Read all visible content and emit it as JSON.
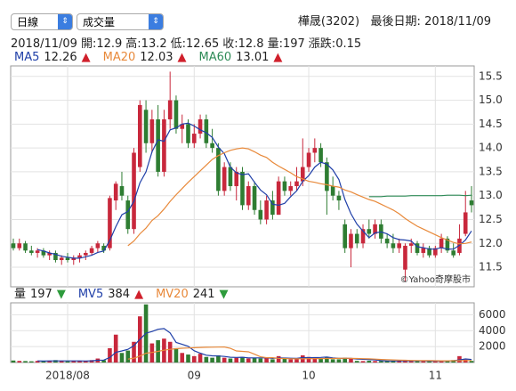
{
  "header": {
    "period_select": "日線",
    "indicator_select": "成交量",
    "stock": "樺晟(3202)",
    "last_date_label": "最後日期:",
    "last_date": "2018/11/09"
  },
  "quote": {
    "date": "2018/11/09",
    "items": [
      {
        "label": "開:",
        "value": 12.9
      },
      {
        "label": "高:",
        "value": 13.2
      },
      {
        "label": "低:",
        "value": 12.65
      },
      {
        "label": "收:",
        "value": 12.8
      },
      {
        "label": "量:",
        "value": 197
      },
      {
        "label": "漲跌:",
        "value": 0.15
      }
    ]
  },
  "chart_data": [
    {
      "type": "candlestick",
      "annotation": "©Yahoo奇摩股市",
      "up_color": "#c8283c",
      "down_color": "#2e7d32",
      "grid": true,
      "ylim": [
        11.09,
        15.72
      ],
      "yticks": [
        11.5,
        {
          "value": 12,
          "label": "12.0"
        },
        12.5,
        {
          "value": 13,
          "label": "13.0"
        },
        13.5,
        {
          "value": 14,
          "label": "14.0"
        },
        14.5,
        {
          "value": 15,
          "label": "15.0"
        },
        15.5
      ],
      "ohlc": [
        [
          12.0,
          12.1,
          11.85,
          11.9
        ],
        [
          11.9,
          12.1,
          11.85,
          12.0
        ],
        [
          12.0,
          12.05,
          11.8,
          11.85
        ],
        [
          11.85,
          11.95,
          11.75,
          11.8
        ],
        [
          11.8,
          11.9,
          11.7,
          11.85
        ],
        [
          11.85,
          11.9,
          11.7,
          11.75
        ],
        [
          11.75,
          11.85,
          11.65,
          11.8
        ],
        [
          11.8,
          11.85,
          11.6,
          11.65
        ],
        [
          11.65,
          11.75,
          11.55,
          11.7
        ],
        [
          11.7,
          11.8,
          11.6,
          11.65
        ],
        [
          11.65,
          11.75,
          11.55,
          11.7
        ],
        [
          11.7,
          11.8,
          11.6,
          11.75
        ],
        [
          11.75,
          11.85,
          11.65,
          11.8
        ],
        [
          11.8,
          11.95,
          11.75,
          11.9
        ],
        [
          11.9,
          12.05,
          11.8,
          12.0
        ],
        [
          11.95,
          12.0,
          11.8,
          11.85
        ],
        [
          11.9,
          13.0,
          11.85,
          12.95
        ],
        [
          12.9,
          13.3,
          12.7,
          13.25
        ],
        [
          13.2,
          13.5,
          12.9,
          13.0
        ],
        [
          12.9,
          13.0,
          12.2,
          12.3
        ],
        [
          12.3,
          14.0,
          12.2,
          13.9
        ],
        [
          13.6,
          15.0,
          13.5,
          14.9
        ],
        [
          14.8,
          15.0,
          13.9,
          14.1
        ],
        [
          14.1,
          14.8,
          13.9,
          14.6
        ],
        [
          14.6,
          14.9,
          13.4,
          13.5
        ],
        [
          13.5,
          14.8,
          13.4,
          14.6
        ],
        [
          14.6,
          15.6,
          14.4,
          15.0
        ],
        [
          15.0,
          15.1,
          14.3,
          14.4
        ],
        [
          14.4,
          14.7,
          14.1,
          14.5
        ],
        [
          14.5,
          14.6,
          14.0,
          14.1
        ],
        [
          14.1,
          14.5,
          14.0,
          14.3
        ],
        [
          14.3,
          14.7,
          14.2,
          14.6
        ],
        [
          14.6,
          14.7,
          14.0,
          14.1
        ],
        [
          14.1,
          14.4,
          13.9,
          14.0
        ],
        [
          14.0,
          14.1,
          13.0,
          13.1
        ],
        [
          13.1,
          13.7,
          13.0,
          13.6
        ],
        [
          13.6,
          13.7,
          13.1,
          13.2
        ],
        [
          13.2,
          13.6,
          12.9,
          13.5
        ],
        [
          13.5,
          13.6,
          12.7,
          12.8
        ],
        [
          12.8,
          13.3,
          12.7,
          13.2
        ],
        [
          13.2,
          13.3,
          12.6,
          12.7
        ],
        [
          12.7,
          12.9,
          12.4,
          12.5
        ],
        [
          12.5,
          13.0,
          12.4,
          12.9
        ],
        [
          12.9,
          13.1,
          12.5,
          12.6
        ],
        [
          12.6,
          13.4,
          12.6,
          13.3
        ],
        [
          13.3,
          13.4,
          13.0,
          13.1
        ],
        [
          13.1,
          13.3,
          13.0,
          13.2
        ],
        [
          13.2,
          13.6,
          13.1,
          13.3
        ],
        [
          13.3,
          14.2,
          13.2,
          13.6
        ],
        [
          13.6,
          14.0,
          13.5,
          13.9
        ],
        [
          13.9,
          14.2,
          13.7,
          14.0
        ],
        [
          14.0,
          14.1,
          13.6,
          13.7
        ],
        [
          13.7,
          13.8,
          12.6,
          13.1
        ],
        [
          13.2,
          13.4,
          12.9,
          13.0
        ],
        [
          13.0,
          13.1,
          12.7,
          12.9
        ],
        [
          12.4,
          12.5,
          11.8,
          11.9
        ],
        [
          11.9,
          12.3,
          11.5,
          12.2
        ],
        [
          12.2,
          12.3,
          11.9,
          12.0
        ],
        [
          12.0,
          12.4,
          11.9,
          12.3
        ],
        [
          12.3,
          12.5,
          12.1,
          12.2
        ],
        [
          12.2,
          12.5,
          12.1,
          12.4
        ],
        [
          12.4,
          12.5,
          12.0,
          12.1
        ],
        [
          12.1,
          12.2,
          11.9,
          12.0
        ],
        [
          12.0,
          12.2,
          11.8,
          11.9
        ],
        [
          11.9,
          12.1,
          11.8,
          12.0
        ],
        [
          11.45,
          12.0,
          11.2,
          11.95
        ],
        [
          11.95,
          12.1,
          11.8,
          12.0
        ],
        [
          12.0,
          12.05,
          11.75,
          11.8
        ],
        [
          11.8,
          12.0,
          11.7,
          11.9
        ],
        [
          11.9,
          11.95,
          11.7,
          11.75
        ],
        [
          11.75,
          11.95,
          11.7,
          11.9
        ],
        [
          11.9,
          12.2,
          11.8,
          12.1
        ],
        [
          12.1,
          12.15,
          11.8,
          11.85
        ],
        [
          11.85,
          12.0,
          11.7,
          11.75
        ],
        [
          11.8,
          12.4,
          11.75,
          12.1
        ],
        [
          12.2,
          13.1,
          12.15,
          12.65
        ],
        [
          12.9,
          13.2,
          12.65,
          12.8
        ]
      ],
      "series": [
        {
          "name": "MA5",
          "last": 12.26,
          "trend": "▲",
          "trend_color": "#d0202c",
          "color": "#1f3fa8",
          "values": [
            null,
            null,
            null,
            null,
            11.87,
            11.84,
            11.8,
            11.77,
            11.73,
            11.71,
            11.69,
            11.69,
            11.72,
            11.75,
            11.81,
            11.84,
            12.06,
            12.35,
            12.6,
            12.67,
            12.88,
            13.27,
            13.5,
            13.92,
            14.17,
            14.14,
            14.38,
            14.42,
            14.5,
            14.52,
            14.46,
            14.38,
            14.32,
            14.22,
            14.02,
            13.88,
            13.6,
            13.48,
            13.44,
            13.46,
            13.28,
            13.12,
            13.02,
            12.82,
            12.8,
            12.84,
            12.98,
            13.1,
            13.3,
            13.42,
            13.6,
            13.7,
            13.66,
            13.54,
            13.34,
            12.92,
            12.62,
            12.4,
            12.26,
            12.12,
            12.22,
            12.24,
            12.2,
            12.12,
            12.08,
            12.07,
            12.05,
            11.93,
            11.91,
            11.88,
            11.88,
            11.91,
            11.88,
            11.88,
            11.96,
            12.07,
            12.26
          ]
        },
        {
          "name": "MA20",
          "last": 12.03,
          "trend": "▲",
          "trend_color": "#d0202c",
          "color": "#e8893a",
          "values": [
            null,
            null,
            null,
            null,
            null,
            null,
            null,
            null,
            null,
            null,
            null,
            null,
            null,
            null,
            null,
            null,
            null,
            null,
            null,
            11.95,
            12.05,
            12.2,
            12.32,
            12.48,
            12.58,
            12.72,
            12.88,
            13.02,
            13.15,
            13.28,
            13.4,
            13.52,
            13.64,
            13.76,
            13.84,
            13.9,
            13.95,
            13.98,
            14.0,
            13.98,
            13.92,
            13.85,
            13.8,
            13.7,
            13.62,
            13.55,
            13.48,
            13.4,
            13.35,
            13.3,
            13.28,
            13.25,
            13.23,
            13.2,
            13.18,
            13.12,
            13.08,
            13.02,
            12.97,
            12.92,
            12.88,
            12.82,
            12.76,
            12.7,
            12.62,
            12.52,
            12.44,
            12.36,
            12.3,
            12.24,
            12.18,
            12.12,
            12.07,
            12.02,
            11.99,
            12.0,
            12.03
          ]
        },
        {
          "name": "MA60",
          "last": 13.01,
          "trend": "▲",
          "trend_color": "#d0202c",
          "color": "#2e8b57",
          "values": [
            null,
            null,
            null,
            null,
            null,
            null,
            null,
            null,
            null,
            null,
            null,
            null,
            null,
            null,
            null,
            null,
            null,
            null,
            null,
            null,
            null,
            null,
            null,
            null,
            null,
            null,
            null,
            null,
            null,
            null,
            null,
            null,
            null,
            null,
            null,
            null,
            null,
            null,
            null,
            null,
            null,
            null,
            null,
            null,
            null,
            null,
            null,
            null,
            null,
            null,
            null,
            null,
            null,
            null,
            null,
            null,
            null,
            null,
            null,
            12.98,
            12.98,
            12.98,
            12.99,
            12.99,
            12.99,
            12.99,
            13.0,
            13.0,
            13.0,
            13.0,
            13.0,
            13.0,
            13.01,
            13.01,
            13.01,
            13.0,
            13.01
          ]
        }
      ]
    },
    {
      "type": "bar",
      "up_color": "#c8283c",
      "down_color": "#2e7d32",
      "grid": true,
      "volume_label": "量",
      "volume_last": 197,
      "volume_trend": "▼",
      "volume_trend_color": "#2e9b3c",
      "ylim": [
        0,
        7500
      ],
      "yticks": [
        2000,
        4000,
        6000
      ],
      "categories": [
        null,
        null,
        null,
        null,
        null,
        null,
        null,
        null,
        null,
        "2018/08",
        null,
        null,
        null,
        null,
        null,
        null,
        null,
        null,
        null,
        null,
        null,
        null,
        null,
        null,
        null,
        null,
        null,
        null,
        null,
        null,
        "09",
        null,
        null,
        null,
        null,
        null,
        null,
        null,
        null,
        null,
        null,
        null,
        null,
        null,
        null,
        null,
        null,
        null,
        null,
        "10",
        null,
        null,
        null,
        null,
        null,
        null,
        null,
        null,
        null,
        null,
        null,
        null,
        null,
        null,
        null,
        null,
        null,
        null,
        null,
        null,
        "11",
        null,
        null,
        null,
        null,
        null,
        null
      ],
      "values": [
        250,
        200,
        180,
        150,
        200,
        150,
        180,
        300,
        200,
        150,
        200,
        180,
        220,
        300,
        500,
        300,
        1800,
        3500,
        1200,
        1500,
        2600,
        5800,
        7300,
        2400,
        2800,
        3000,
        2600,
        1800,
        1200,
        1000,
        800,
        1100,
        700,
        600,
        900,
        600,
        500,
        600,
        700,
        500,
        600,
        500,
        600,
        400,
        800,
        500,
        400,
        500,
        900,
        700,
        600,
        500,
        700,
        400,
        400,
        600,
        500,
        200,
        180,
        220,
        190,
        170,
        200,
        180,
        210,
        260,
        190,
        170,
        180,
        200,
        180,
        170,
        250,
        300,
        800,
        373,
        197
      ],
      "series": [
        {
          "name": "MV5",
          "last": 384,
          "trend": "▲",
          "trend_color": "#d0202c",
          "color": "#1f3fa8",
          "values": [
            null,
            null,
            null,
            null,
            196,
            176,
            196,
            196,
            206,
            196,
            206,
            206,
            190,
            210,
            280,
            300,
            624,
            1280,
            1460,
            1660,
            2120,
            2920,
            3680,
            3900,
            4180,
            4260,
            3720,
            2520,
            2280,
            2040,
            1480,
            1180,
            920,
            840,
            820,
            760,
            660,
            640,
            660,
            580,
            580,
            580,
            580,
            520,
            580,
            560,
            540,
            520,
            620,
            600,
            620,
            640,
            680,
            580,
            520,
            520,
            520,
            440,
            400,
            360,
            332,
            238,
            192,
            188,
            196,
            222,
            210,
            204,
            198,
            184,
            176,
            186,
            200,
            220,
            330,
            444,
            384
          ]
        },
        {
          "name": "MV20",
          "last": 241,
          "trend": "▼",
          "trend_color": "#2e9b3c",
          "color": "#e8893a",
          "values": [
            null,
            null,
            null,
            null,
            null,
            null,
            null,
            null,
            null,
            null,
            null,
            null,
            null,
            null,
            null,
            null,
            null,
            null,
            null,
            420,
            540,
            810,
            1160,
            1270,
            1400,
            1540,
            1660,
            1740,
            1790,
            1830,
            1860,
            1890,
            1910,
            1920,
            1940,
            1950,
            1780,
            1460,
            1400,
            1340,
            1040,
            720,
            600,
            610,
            520,
            500,
            470,
            460,
            470,
            480,
            490,
            490,
            500,
            500,
            510,
            540,
            520,
            500,
            480,
            460,
            420,
            380,
            350,
            330,
            300,
            280,
            260,
            250,
            240,
            230,
            220,
            215,
            215,
            220,
            235,
            245,
            241
          ]
        }
      ]
    }
  ]
}
